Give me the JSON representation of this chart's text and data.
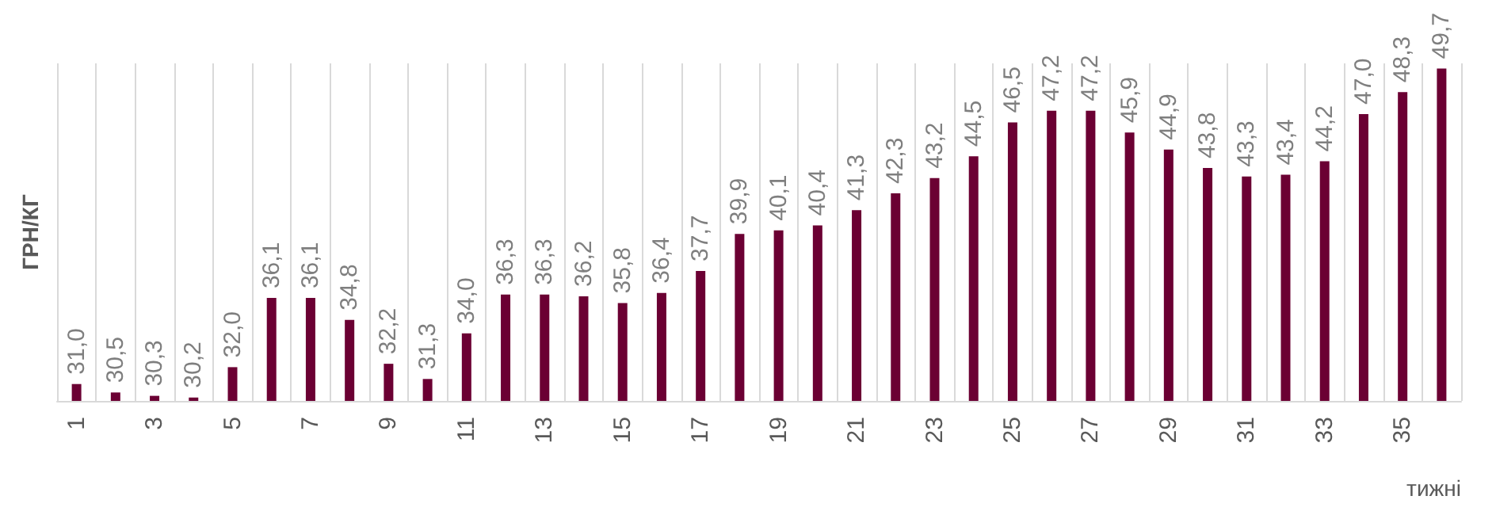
{
  "chart_data": {
    "type": "bar",
    "xlabel": "тижні",
    "ylabel": "ГРН/КГ",
    "categories": [
      "1",
      null,
      "3",
      null,
      "5",
      null,
      "7",
      null,
      "9",
      null,
      "11",
      null,
      "13",
      null,
      "15",
      null,
      "17",
      null,
      "19",
      null,
      "21",
      null,
      "23",
      null,
      "25",
      null,
      "27",
      null,
      "29",
      null,
      "31",
      null,
      "33",
      null,
      "35",
      null
    ],
    "series": [
      {
        "color": "#6b0033",
        "values": [
          31.0,
          30.5,
          30.3,
          30.2,
          32.0,
          36.1,
          36.1,
          34.8,
          32.2,
          31.3,
          34.0,
          36.3,
          36.3,
          36.2,
          35.8,
          36.4,
          37.7,
          39.9,
          40.1,
          40.4,
          41.3,
          42.3,
          43.2,
          44.5,
          46.5,
          47.2,
          47.2,
          45.9,
          44.9,
          43.8,
          43.3,
          43.4,
          44.2,
          47.0,
          48.3,
          49.7
        ],
        "value_labels": [
          "31,0",
          "30,5",
          "30,3",
          "30,2",
          "32,0",
          "36,1",
          "36,1",
          "34,8",
          "32,2",
          "31,3",
          "34,0",
          "36,3",
          "36,3",
          "36,2",
          "35,8",
          "36,4",
          "37,7",
          "39,9",
          "40,1",
          "40,4",
          "41,3",
          "42,3",
          "43,2",
          "44,5",
          "46,5",
          "47,2",
          "47,2",
          "45,9",
          "44,9",
          "43,8",
          "43,3",
          "43,4",
          "44,2",
          "47,0",
          "48,3",
          "49,7"
        ]
      }
    ],
    "ylim": [
      30,
      50
    ],
    "tick_labels": "x",
    "grid": "x"
  }
}
